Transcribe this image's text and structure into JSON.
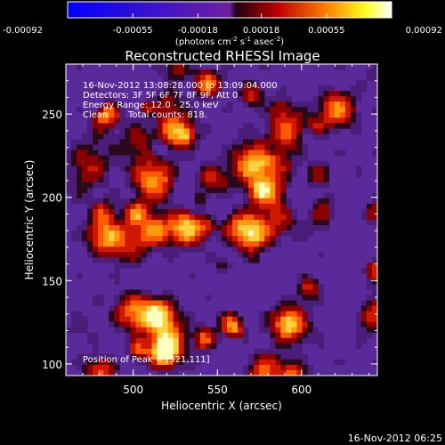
{
  "chart_data": {
    "type": "heatmap",
    "title": "Reconstructed RHESSI Image",
    "xlabel": "Heliocentric X (arcsec)",
    "ylabel": "Heliocentric Y (arcsec)",
    "x_ticks": [
      "500",
      "550",
      "600"
    ],
    "y_ticks": [
      "100",
      "150",
      "200",
      "250"
    ],
    "xlim": [
      460,
      645
    ],
    "ylim": [
      93,
      280
    ],
    "colorbar": {
      "ticks": [
        "-0.00092",
        "-0.00055",
        "-0.00018",
        "0.00018",
        "0.00055",
        "0.00092"
      ],
      "unit_label_parts": [
        "(photons cm",
        "-2",
        " s",
        "-1",
        " asec",
        "-2",
        ")"
      ],
      "range": [
        -0.00092,
        0.00092
      ]
    },
    "annotations": {
      "time_range": "16-Nov-2012 13:08:28.000 to 13:09:04.000",
      "detectors": "Detectors: 3F 5F 6F 7F 8F 9F, Att 0",
      "energy_range": "Energy Range: 12.0 - 25.0 keV",
      "clean": "Clean",
      "total_counts": "Total counts: 818.",
      "peak": "Position of Peak = [521,111]"
    },
    "footer_timestamp": "16-Nov-2012 06:25"
  }
}
